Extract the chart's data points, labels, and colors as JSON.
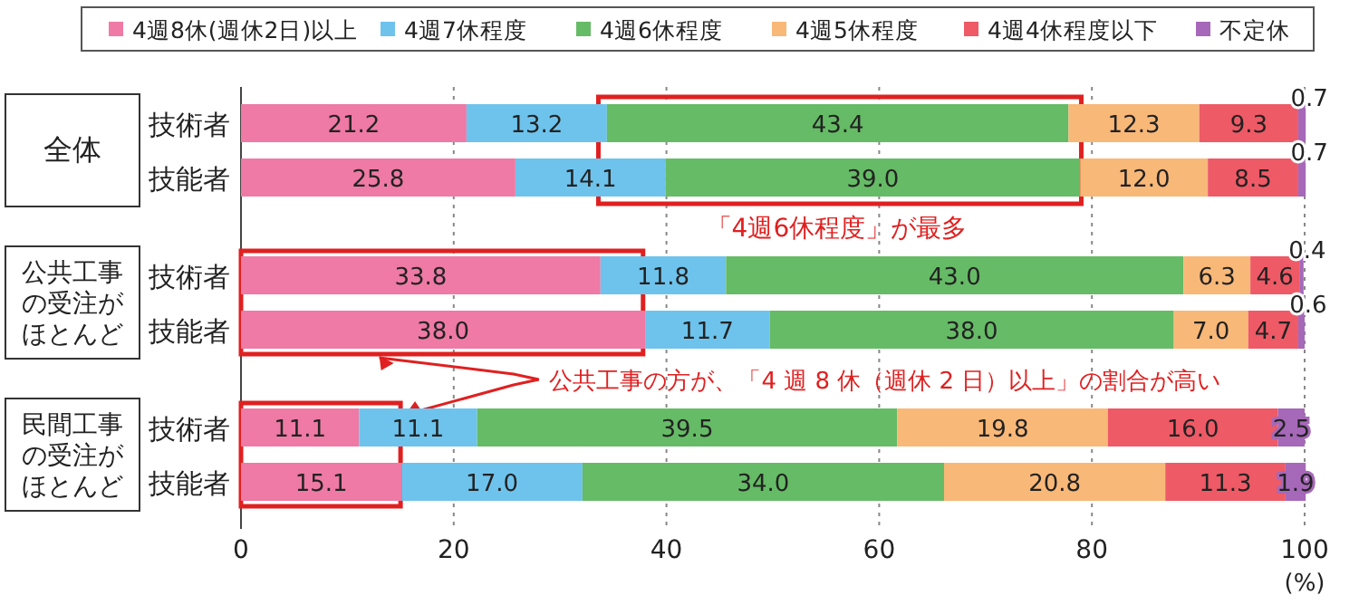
{
  "chart_data": {
    "type": "bar",
    "orientation": "horizontal",
    "stacked": true,
    "categories": [
      "技術者",
      "技能者",
      "技術者",
      "技能者",
      "技術者",
      "技能者"
    ],
    "series": [
      {
        "name": "4週8休(週休2日)以上",
        "color": "#ee7aa5",
        "values": [
          21.2,
          25.8,
          33.8,
          38.0,
          11.1,
          15.1
        ],
        "value_labels": [
          "21.2",
          "25.8",
          "33.8",
          "38.0",
          "11.1",
          "15.1"
        ]
      },
      {
        "name": "4週7休程度",
        "color": "#6ec3ec",
        "values": [
          13.2,
          14.1,
          11.8,
          11.7,
          11.1,
          17.0
        ],
        "value_labels": [
          "13.2",
          "14.1",
          "11.8",
          "11.7",
          "11.1",
          "17.0"
        ]
      },
      {
        "name": "4週6休程度",
        "color": "#66bb66",
        "values": [
          43.4,
          39.0,
          43.0,
          38.0,
          39.5,
          34.0
        ],
        "value_labels": [
          "43.4",
          "39.0",
          "43.0",
          "38.0",
          "39.5",
          "34.0"
        ]
      },
      {
        "name": "4週5休程度",
        "color": "#f8b878",
        "values": [
          12.3,
          12.0,
          6.3,
          7.0,
          19.8,
          20.8
        ],
        "value_labels": [
          "12.3",
          "12.0",
          "6.3",
          "7.0",
          "19.8",
          "20.8"
        ]
      },
      {
        "name": "4週4休程度以下",
        "color": "#ee5a66",
        "values": [
          9.3,
          8.5,
          4.6,
          4.7,
          16.0,
          11.3
        ],
        "value_labels": [
          "9.3",
          "8.5",
          "4.6",
          "4.7",
          "16.0",
          "11.3"
        ]
      },
      {
        "name": "不定休",
        "color": "#a668b8",
        "values": [
          0.7,
          0.7,
          0.4,
          0.6,
          2.5,
          1.9
        ],
        "value_labels": [
          "0.7",
          "0.7",
          "0.4",
          "0.6",
          "2.5",
          "1.9"
        ]
      }
    ],
    "xlim": [
      0,
      100
    ],
    "xticks": [
      0,
      20,
      40,
      60,
      80,
      100
    ],
    "xlabel": "(%)",
    "grid": "x",
    "legend": "top",
    "annotations": [
      "全体",
      "公共工事の受注がほとんど",
      "民間工事の受注がほとんど",
      "「4週6休程度」が最多",
      "公共工事の方が、「4 週 8 休（週休 2 日）以上」の割合が高い"
    ]
  }
}
